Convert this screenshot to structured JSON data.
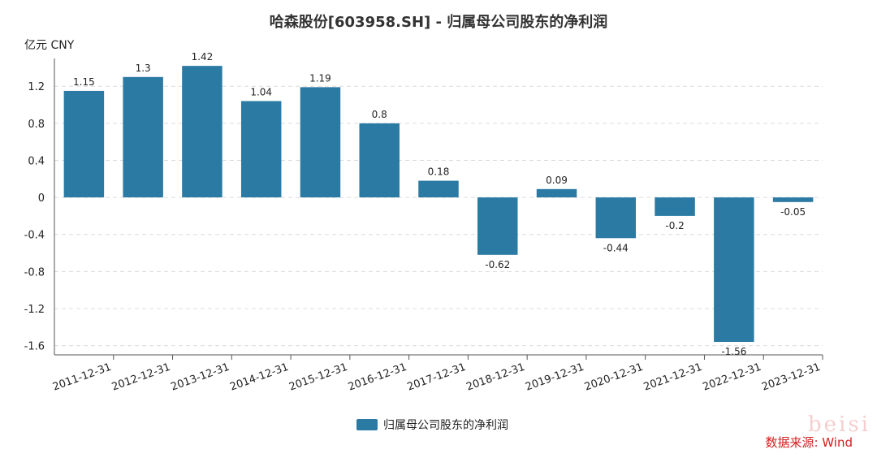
{
  "colors": {
    "bar": "#2b7aa3",
    "grid": "#dcdcdc",
    "axis": "#555555",
    "source": "#d21f1f"
  },
  "source_text": "数据来源: Wind",
  "watermark_text": "beisi",
  "chart_data": {
    "type": "bar",
    "title": "哈森股份[603958.SH] - 归属母公司股东的净利润",
    "unit_label": "亿元  CNY",
    "categories": [
      "2011-12-31",
      "2012-12-31",
      "2013-12-31",
      "2014-12-31",
      "2015-12-31",
      "2016-12-31",
      "2017-12-31",
      "2018-12-31",
      "2019-12-31",
      "2020-12-31",
      "2021-12-31",
      "2022-12-31",
      "2023-12-31"
    ],
    "series": [
      {
        "name": "归属母公司股东的净利润",
        "values": [
          1.15,
          1.3,
          1.42,
          1.04,
          1.19,
          0.8,
          0.18,
          -0.62,
          0.09,
          -0.44,
          -0.2,
          -1.56,
          -0.05
        ]
      }
    ],
    "yticks": [
      1.2,
      0.8,
      0.4,
      0,
      -0.4,
      -0.8,
      -1.2,
      -1.6
    ],
    "ylim": [
      -1.7,
      1.5
    ],
    "grid": true,
    "legend": "bottom-center"
  }
}
